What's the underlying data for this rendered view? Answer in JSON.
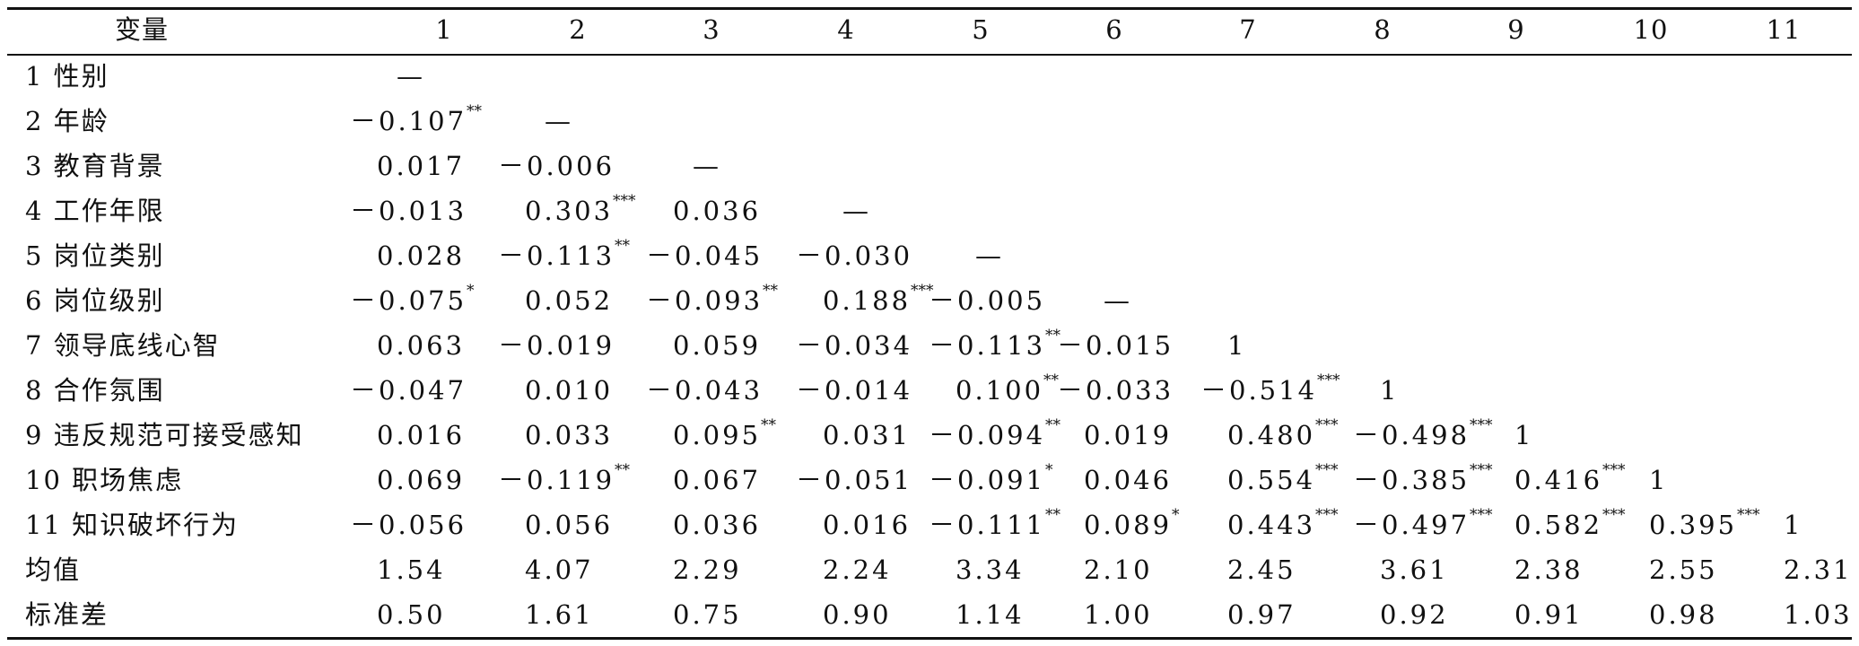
{
  "table": {
    "headers": [
      "变量",
      "1",
      "2",
      "3",
      "4",
      "5",
      "6",
      "7",
      "8",
      "9",
      "10",
      "11"
    ],
    "rows": [
      {
        "label": "1 性别",
        "cells": [
          {
            "v": "—",
            "s": ""
          }
        ]
      },
      {
        "label": "2 年龄",
        "cells": [
          {
            "v": "－0.107",
            "s": "**"
          },
          {
            "v": "—",
            "s": ""
          }
        ]
      },
      {
        "label": "3 教育背景",
        "cells": [
          {
            "v": "0.017",
            "s": ""
          },
          {
            "v": "－0.006",
            "s": ""
          },
          {
            "v": "—",
            "s": ""
          }
        ]
      },
      {
        "label": "4 工作年限",
        "cells": [
          {
            "v": "－0.013",
            "s": ""
          },
          {
            "v": "0.303",
            "s": "***"
          },
          {
            "v": "0.036",
            "s": ""
          },
          {
            "v": "—",
            "s": ""
          }
        ]
      },
      {
        "label": "5 岗位类别",
        "cells": [
          {
            "v": "0.028",
            "s": ""
          },
          {
            "v": "－0.113",
            "s": "**"
          },
          {
            "v": "－0.045",
            "s": ""
          },
          {
            "v": "－0.030",
            "s": ""
          },
          {
            "v": "—",
            "s": ""
          }
        ]
      },
      {
        "label": "6 岗位级别",
        "cells": [
          {
            "v": "－0.075",
            "s": "*"
          },
          {
            "v": "0.052",
            "s": ""
          },
          {
            "v": "－0.093",
            "s": "**"
          },
          {
            "v": "0.188",
            "s": "***"
          },
          {
            "v": "－0.005",
            "s": ""
          },
          {
            "v": "—",
            "s": ""
          }
        ]
      },
      {
        "label": "7 领导底线心智",
        "cells": [
          {
            "v": "0.063",
            "s": ""
          },
          {
            "v": "－0.019",
            "s": ""
          },
          {
            "v": "0.059",
            "s": ""
          },
          {
            "v": "－0.034",
            "s": ""
          },
          {
            "v": "－0.113",
            "s": "**"
          },
          {
            "v": "－0.015",
            "s": ""
          },
          {
            "v": "1",
            "s": ""
          }
        ]
      },
      {
        "label": "8 合作氛围",
        "cells": [
          {
            "v": "－0.047",
            "s": ""
          },
          {
            "v": "0.010",
            "s": ""
          },
          {
            "v": "－0.043",
            "s": ""
          },
          {
            "v": "－0.014",
            "s": ""
          },
          {
            "v": "0.100",
            "s": "**"
          },
          {
            "v": "－0.033",
            "s": ""
          },
          {
            "v": "－0.514",
            "s": "***"
          },
          {
            "v": "1",
            "s": ""
          }
        ]
      },
      {
        "label": "9 违反规范可接受感知",
        "cells": [
          {
            "v": "0.016",
            "s": ""
          },
          {
            "v": "0.033",
            "s": ""
          },
          {
            "v": "0.095",
            "s": "**"
          },
          {
            "v": "0.031",
            "s": ""
          },
          {
            "v": "－0.094",
            "s": "**"
          },
          {
            "v": "0.019",
            "s": ""
          },
          {
            "v": "0.480",
            "s": "***"
          },
          {
            "v": "－0.498",
            "s": "***"
          },
          {
            "v": "1",
            "s": ""
          }
        ]
      },
      {
        "label": "10 职场焦虑",
        "cells": [
          {
            "v": "0.069",
            "s": ""
          },
          {
            "v": "－0.119",
            "s": "**"
          },
          {
            "v": "0.067",
            "s": ""
          },
          {
            "v": "－0.051",
            "s": ""
          },
          {
            "v": "－0.091",
            "s": "*"
          },
          {
            "v": "0.046",
            "s": ""
          },
          {
            "v": "0.554",
            "s": "***"
          },
          {
            "v": "－0.385",
            "s": "***"
          },
          {
            "v": "0.416",
            "s": "***"
          },
          {
            "v": "1",
            "s": ""
          }
        ]
      },
      {
        "label": "11 知识破坏行为",
        "cells": [
          {
            "v": "－0.056",
            "s": ""
          },
          {
            "v": "0.056",
            "s": ""
          },
          {
            "v": "0.036",
            "s": ""
          },
          {
            "v": "0.016",
            "s": ""
          },
          {
            "v": "－0.111",
            "s": "**"
          },
          {
            "v": "0.089",
            "s": "*"
          },
          {
            "v": "0.443",
            "s": "***"
          },
          {
            "v": "－0.497",
            "s": "***"
          },
          {
            "v": "0.582",
            "s": "***"
          },
          {
            "v": "0.395",
            "s": "***"
          },
          {
            "v": "1",
            "s": ""
          }
        ]
      },
      {
        "label": "均值",
        "cells": [
          {
            "v": "1.54",
            "s": ""
          },
          {
            "v": "4.07",
            "s": ""
          },
          {
            "v": "2.29",
            "s": ""
          },
          {
            "v": "2.24",
            "s": ""
          },
          {
            "v": "3.34",
            "s": ""
          },
          {
            "v": "2.10",
            "s": ""
          },
          {
            "v": "2.45",
            "s": ""
          },
          {
            "v": "3.61",
            "s": ""
          },
          {
            "v": "2.38",
            "s": ""
          },
          {
            "v": "2.55",
            "s": ""
          },
          {
            "v": "2.31",
            "s": ""
          }
        ]
      },
      {
        "label": "标准差",
        "cells": [
          {
            "v": "0.50",
            "s": ""
          },
          {
            "v": "1.61",
            "s": ""
          },
          {
            "v": "0.75",
            "s": ""
          },
          {
            "v": "0.90",
            "s": ""
          },
          {
            "v": "1.14",
            "s": ""
          },
          {
            "v": "1.00",
            "s": ""
          },
          {
            "v": "0.97",
            "s": ""
          },
          {
            "v": "0.92",
            "s": ""
          },
          {
            "v": "0.91",
            "s": ""
          },
          {
            "v": "0.98",
            "s": ""
          },
          {
            "v": "1.03",
            "s": ""
          }
        ]
      }
    ]
  }
}
